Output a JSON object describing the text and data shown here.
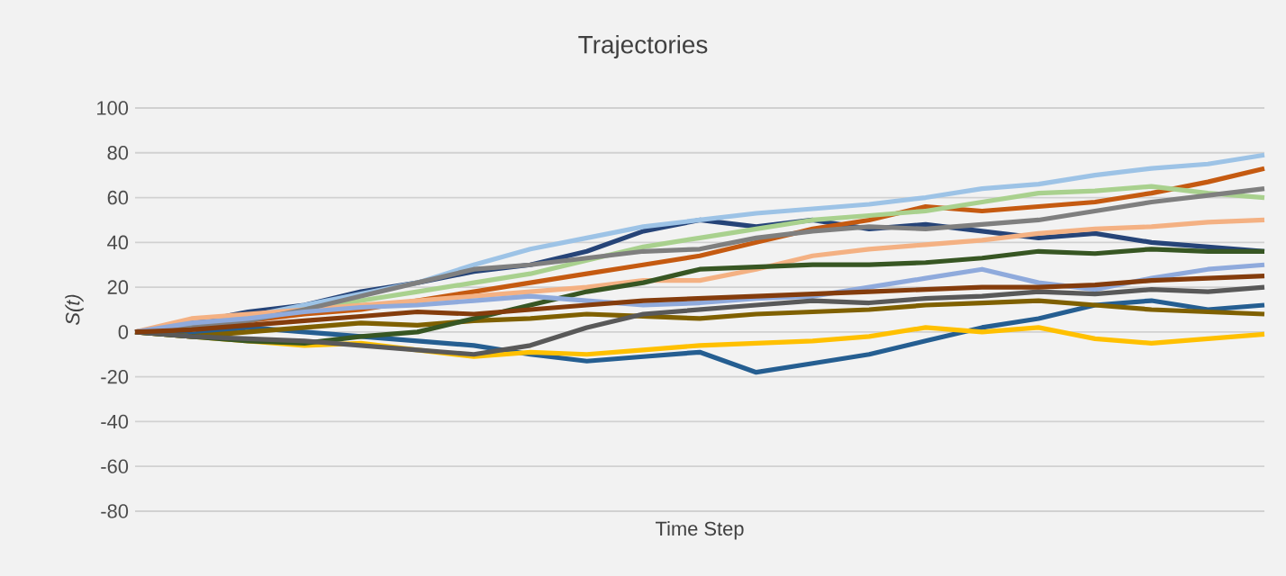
{
  "chart_data": {
    "type": "line",
    "title": "Trajectories",
    "xlabel": "Time Step",
    "ylabel": "S(t)",
    "categories": [
      null,
      null,
      null,
      null,
      null,
      null,
      null,
      null,
      null,
      null,
      null,
      null,
      null,
      null,
      null,
      null,
      null,
      null,
      null,
      null,
      null
    ],
    "ylim": [
      -80,
      100
    ],
    "yticks": [
      -80,
      -60,
      -40,
      -20,
      0,
      20,
      40,
      60,
      80,
      100
    ],
    "grid": "y",
    "legend": false,
    "marker": "none",
    "line_style": "solid",
    "series": [
      {
        "color": "#264478",
        "values": [
          0,
          4,
          9,
          12,
          18,
          22,
          27,
          30,
          36,
          45,
          50,
          47,
          50,
          46,
          48,
          45,
          42,
          44,
          40,
          38,
          36
        ]
      },
      {
        "color": "#255e91",
        "values": [
          0,
          -1,
          2,
          0,
          -2,
          -4,
          -6,
          -10,
          -13,
          -11,
          -9,
          -18,
          -14,
          -10,
          -4,
          2,
          6,
          12,
          14,
          10,
          12
        ]
      },
      {
        "color": "#ffc000",
        "values": [
          0,
          -2,
          -4,
          -6,
          -5,
          -8,
          -11,
          -9,
          -10,
          -8,
          -6,
          -5,
          -4,
          -2,
          2,
          0,
          2,
          -3,
          -5,
          -3,
          -1
        ]
      },
      {
        "color": "#9dc3e6",
        "values": [
          0,
          3,
          7,
          12,
          17,
          22,
          30,
          37,
          42,
          47,
          50,
          53,
          55,
          57,
          60,
          64,
          66,
          70,
          73,
          75,
          79
        ]
      },
      {
        "color": "#c55a11",
        "values": [
          0,
          2,
          5,
          8,
          10,
          14,
          18,
          22,
          26,
          30,
          34,
          40,
          46,
          50,
          56,
          54,
          56,
          58,
          62,
          67,
          73
        ]
      },
      {
        "color": "#a9d18e",
        "values": [
          0,
          3,
          6,
          10,
          14,
          18,
          22,
          26,
          32,
          38,
          42,
          46,
          50,
          52,
          54,
          58,
          62,
          63,
          65,
          62,
          60
        ]
      },
      {
        "color": "#f4b183",
        "values": [
          0,
          6,
          8,
          10,
          12,
          14,
          16,
          18,
          20,
          23,
          23,
          28,
          34,
          37,
          39,
          41,
          44,
          46,
          47,
          49,
          50
        ]
      },
      {
        "color": "#7f6000",
        "values": [
          0,
          -2,
          0,
          2,
          4,
          3,
          5,
          6,
          8,
          7,
          6,
          8,
          9,
          10,
          12,
          13,
          14,
          12,
          10,
          9,
          8
        ]
      },
      {
        "color": "#375623",
        "values": [
          0,
          -2,
          -4,
          -5,
          -2,
          0,
          6,
          12,
          18,
          22,
          28,
          29,
          30,
          30,
          31,
          33,
          36,
          35,
          37,
          36,
          36
        ]
      },
      {
        "color": "#7f7f7f",
        "values": [
          0,
          2,
          5,
          10,
          16,
          22,
          28,
          30,
          33,
          36,
          37,
          42,
          45,
          47,
          46,
          48,
          50,
          54,
          58,
          61,
          64
        ]
      },
      {
        "color": "#8faadc",
        "values": [
          0,
          4,
          6,
          9,
          11,
          12,
          14,
          16,
          14,
          12,
          13,
          15,
          16,
          20,
          24,
          28,
          22,
          19,
          24,
          28,
          30
        ]
      },
      {
        "color": "#595959",
        "values": [
          0,
          -2,
          -3,
          -4,
          -6,
          -8,
          -10,
          -6,
          2,
          8,
          10,
          12,
          14,
          13,
          15,
          16,
          18,
          17,
          19,
          18,
          20
        ]
      },
      {
        "color": "#843c0c",
        "values": [
          0,
          1,
          3,
          5,
          7,
          9,
          8,
          10,
          12,
          14,
          15,
          16,
          17,
          18,
          19,
          20,
          20,
          21,
          23,
          24,
          25
        ]
      }
    ]
  }
}
